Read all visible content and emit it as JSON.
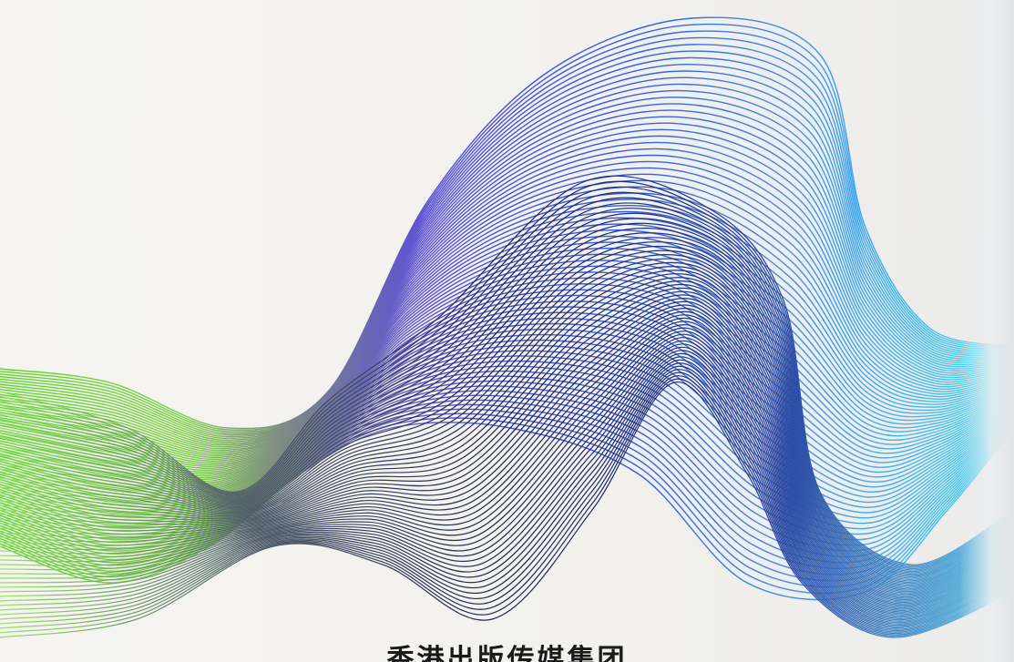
{
  "cover": {
    "publisher": "香港出版传媒集团"
  },
  "artwork": {
    "icon": "line-wave-artwork",
    "colors": {
      "green": "#5dd62c",
      "gray": "#7f8a86",
      "navy": "#1c2250",
      "violet": "#5b4fd6",
      "blue": "#2f5bea",
      "cyan": "#4ad9ee"
    }
  }
}
